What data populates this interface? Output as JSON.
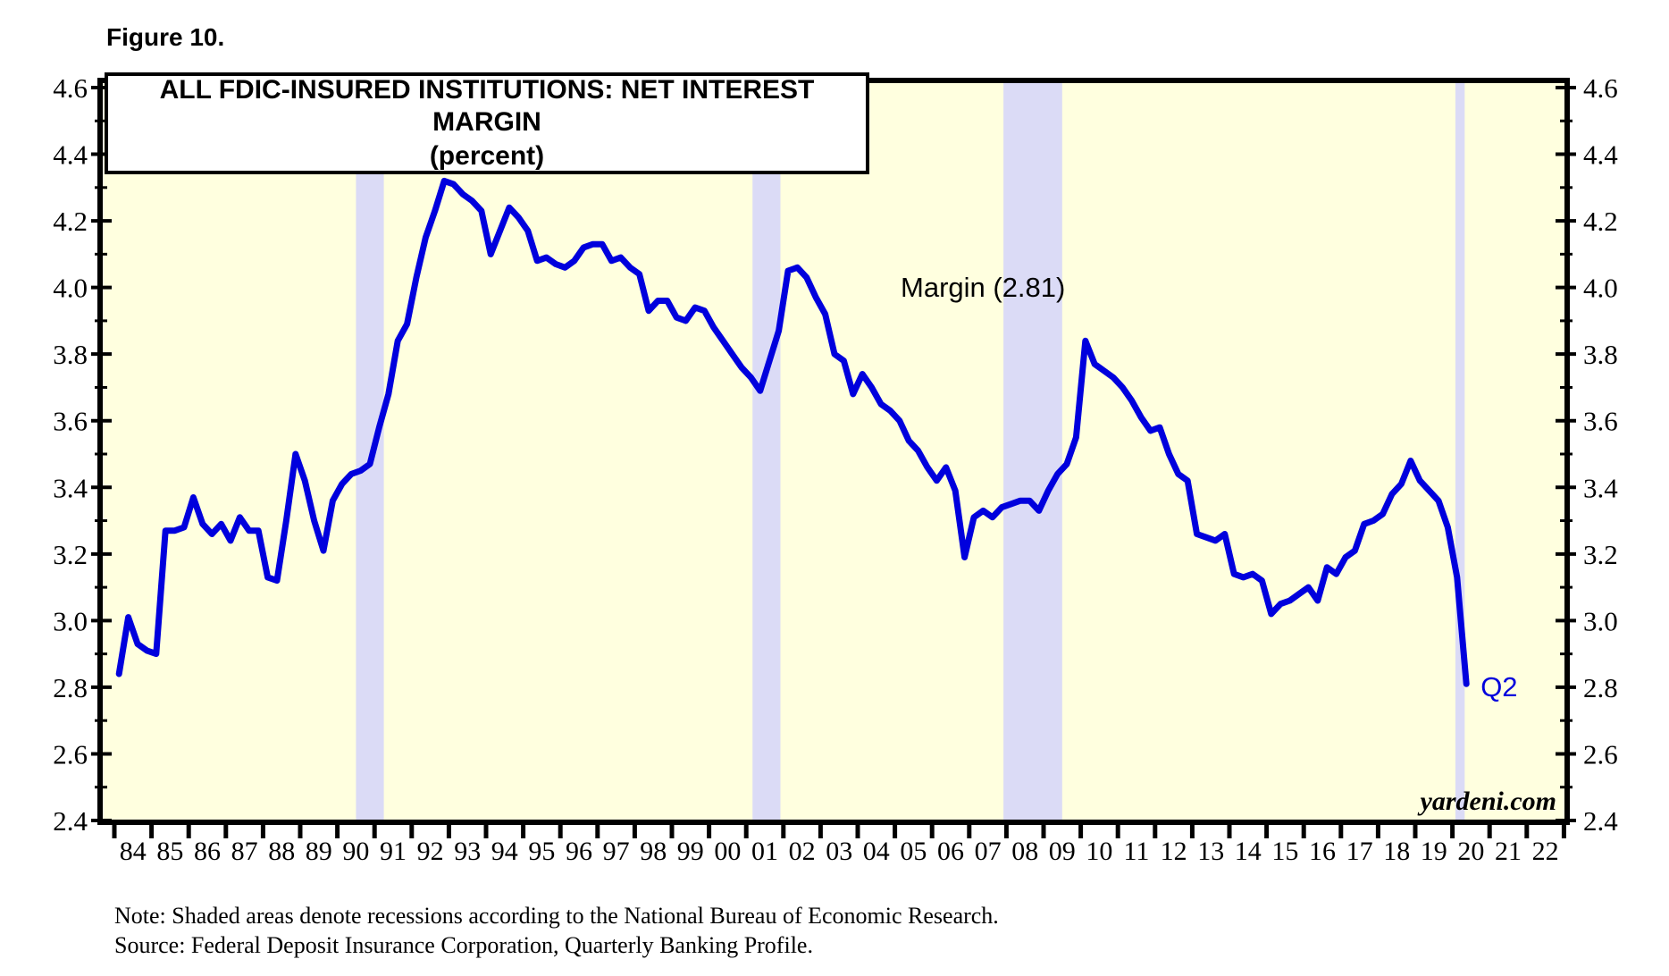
{
  "figure_label": "Figure 10.",
  "chart_data": {
    "type": "line",
    "title": "ALL FDIC-INSURED INSTITUTIONS: NET INTEREST MARGIN",
    "subtitle": "(percent)",
    "annotation": "Margin (2.81)",
    "watermark": "yardeni.com",
    "ylim": [
      2.4,
      4.6
    ],
    "y_tick_step": 0.2,
    "y_minor_step": 0.1,
    "grid": false,
    "y_ticks": [
      "2.4",
      "2.6",
      "2.8",
      "3.0",
      "3.2",
      "3.4",
      "3.6",
      "3.8",
      "4.0",
      "4.2",
      "4.4",
      "4.6"
    ],
    "x_ticks": [
      "84",
      "85",
      "86",
      "87",
      "88",
      "89",
      "90",
      "91",
      "92",
      "93",
      "94",
      "95",
      "96",
      "97",
      "98",
      "99",
      "00",
      "01",
      "02",
      "03",
      "04",
      "05",
      "06",
      "07",
      "08",
      "09",
      "10",
      "11",
      "12",
      "13",
      "14",
      "15",
      "16",
      "17",
      "18",
      "19",
      "20",
      "21",
      "22"
    ],
    "x_range_years": [
      1984,
      2023
    ],
    "series": [
      {
        "name": "Net Interest Margin",
        "frequency": "quarterly",
        "start_year": 1984,
        "start_quarter": 1,
        "end_label": "Q2",
        "last_value": 2.81,
        "values": [
          2.84,
          3.01,
          2.93,
          2.91,
          2.9,
          3.27,
          3.27,
          3.28,
          3.37,
          3.29,
          3.26,
          3.29,
          3.24,
          3.31,
          3.27,
          3.27,
          3.13,
          3.12,
          3.3,
          3.5,
          3.42,
          3.3,
          3.21,
          3.36,
          3.41,
          3.44,
          3.45,
          3.47,
          3.58,
          3.68,
          3.84,
          3.89,
          4.03,
          4.15,
          4.23,
          4.32,
          4.31,
          4.28,
          4.26,
          4.23,
          4.1,
          4.17,
          4.24,
          4.21,
          4.17,
          4.08,
          4.09,
          4.07,
          4.06,
          4.08,
          4.12,
          4.13,
          4.13,
          4.08,
          4.09,
          4.06,
          4.04,
          3.93,
          3.96,
          3.96,
          3.91,
          3.9,
          3.94,
          3.93,
          3.88,
          3.84,
          3.8,
          3.76,
          3.73,
          3.69,
          3.78,
          3.87,
          4.05,
          4.06,
          4.03,
          3.97,
          3.92,
          3.8,
          3.78,
          3.68,
          3.74,
          3.7,
          3.65,
          3.63,
          3.6,
          3.54,
          3.51,
          3.46,
          3.42,
          3.46,
          3.39,
          3.19,
          3.31,
          3.33,
          3.31,
          3.34,
          3.35,
          3.36,
          3.36,
          3.33,
          3.39,
          3.44,
          3.47,
          3.55,
          3.84,
          3.77,
          3.75,
          3.73,
          3.7,
          3.66,
          3.61,
          3.57,
          3.58,
          3.5,
          3.44,
          3.42,
          3.26,
          3.25,
          3.24,
          3.26,
          3.14,
          3.13,
          3.14,
          3.12,
          3.02,
          3.05,
          3.06,
          3.08,
          3.1,
          3.06,
          3.16,
          3.14,
          3.19,
          3.21,
          3.29,
          3.3,
          3.32,
          3.38,
          3.41,
          3.48,
          3.42,
          3.39,
          3.36,
          3.28,
          3.13,
          2.81
        ]
      }
    ],
    "recessions": [
      {
        "start": 1990.5,
        "end": 1991.25
      },
      {
        "start": 2001.17,
        "end": 2001.92
      },
      {
        "start": 2007.92,
        "end": 2009.5
      },
      {
        "start": 2020.08,
        "end": 2020.33
      }
    ],
    "colors": {
      "line": "#0000DD",
      "plot_bg": "#FFFFDF",
      "recession_band": "#DBDBF6",
      "frame": "#000000",
      "text": "#000000"
    }
  },
  "notes": {
    "note": "Note: Shaded areas denote recessions according to the National Bureau of Economic Research.",
    "source": "Source: Federal Deposit Insurance Corporation, Quarterly Banking Profile."
  }
}
